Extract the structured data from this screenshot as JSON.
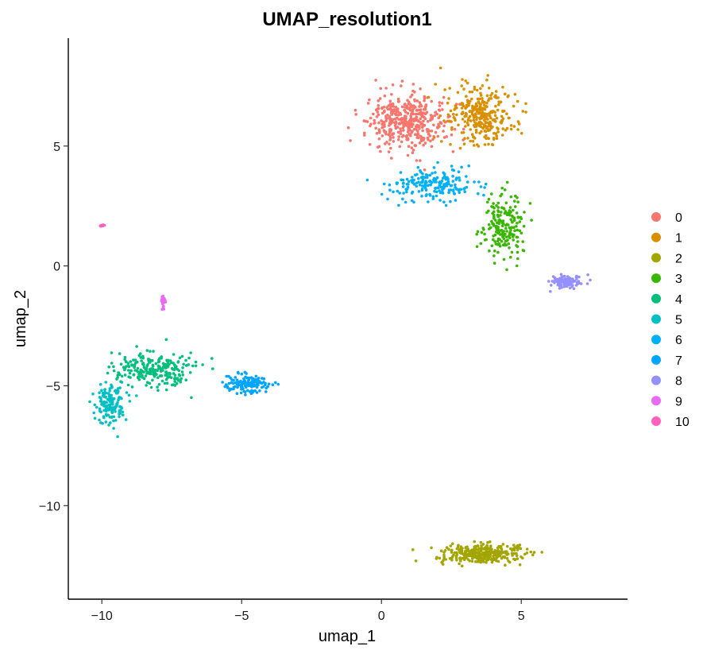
{
  "chart_data": {
    "type": "scatter",
    "title": "UMAP_resolution1",
    "xlabel": "umap_1",
    "ylabel": "umap_2",
    "xlim": [
      -11.2,
      8.8
    ],
    "ylim": [
      -13.9,
      9.5
    ],
    "x_ticks": [
      -10,
      -5,
      0,
      5
    ],
    "x_tick_labels": [
      "−10",
      "−5",
      "0",
      "5"
    ],
    "y_ticks": [
      -10,
      -5,
      0,
      5
    ],
    "y_tick_labels": [
      "−10",
      "−5",
      "0",
      "5"
    ],
    "grid": false,
    "legend_position": "right",
    "series": [
      {
        "name": "0",
        "color": "#F8766D",
        "clusters": [
          {
            "cx": 0.9,
            "cy": 6.0,
            "sx": 1.25,
            "sy": 1.0,
            "n": 420
          }
        ]
      },
      {
        "name": "1",
        "color": "#D89000",
        "clusters": [
          {
            "cx": 3.6,
            "cy": 6.3,
            "sx": 1.15,
            "sy": 1.1,
            "n": 300
          }
        ]
      },
      {
        "name": "2",
        "color": "#A3A500",
        "clusters": [
          {
            "cx": 3.6,
            "cy": -12.0,
            "sx": 1.3,
            "sy": 0.35,
            "n": 340
          }
        ]
      },
      {
        "name": "3",
        "color": "#39B600",
        "clusters": [
          {
            "cx": 4.4,
            "cy": 1.7,
            "sx": 0.65,
            "sy": 1.25,
            "n": 190
          }
        ]
      },
      {
        "name": "4",
        "color": "#00BF7D",
        "clusters": [
          {
            "cx": -8.2,
            "cy": -4.3,
            "sx": 1.3,
            "sy": 0.65,
            "n": 240
          }
        ]
      },
      {
        "name": "5",
        "color": "#00BFC4",
        "clusters": [
          {
            "cx": -9.7,
            "cy": -5.7,
            "sx": 0.5,
            "sy": 0.75,
            "n": 150
          }
        ]
      },
      {
        "name": "6",
        "color": "#00B0F6",
        "clusters": [
          {
            "cx": 1.8,
            "cy": 3.4,
            "sx": 1.5,
            "sy": 0.65,
            "n": 190
          }
        ]
      },
      {
        "name": "7",
        "color": "#00A5FF",
        "clusters": [
          {
            "cx": -4.8,
            "cy": -4.9,
            "sx": 0.7,
            "sy": 0.35,
            "n": 130
          }
        ]
      },
      {
        "name": "8",
        "color": "#9590FF",
        "clusters": [
          {
            "cx": 6.6,
            "cy": -0.65,
            "sx": 0.45,
            "sy": 0.25,
            "n": 110
          }
        ]
      },
      {
        "name": "9",
        "color": "#E76BF3",
        "clusters": [
          {
            "cx": -7.8,
            "cy": -1.5,
            "sx": 0.07,
            "sy": 0.3,
            "n": 20
          }
        ]
      },
      {
        "name": "10",
        "color": "#FF62BC",
        "clusters": [
          {
            "cx": -10.0,
            "cy": 1.7,
            "sx": 0.08,
            "sy": 0.05,
            "n": 9
          }
        ]
      }
    ]
  }
}
